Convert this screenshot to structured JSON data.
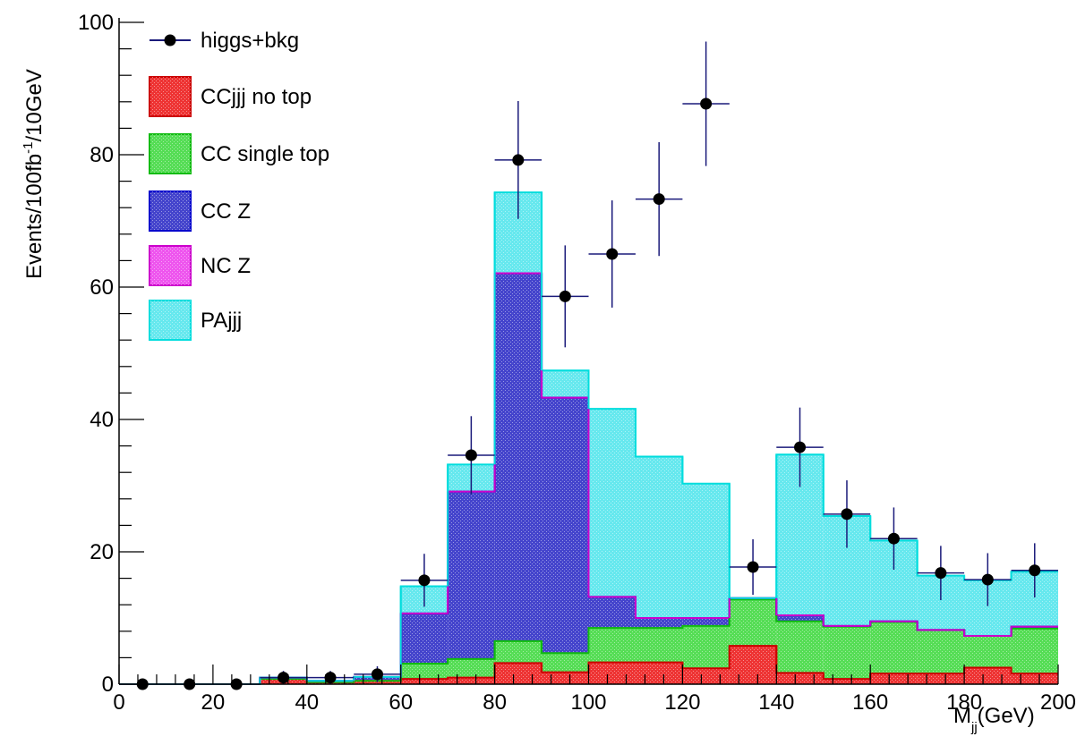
{
  "chart_data": {
    "type": "histogram-stacked",
    "xlabel": "M",
    "xlabel_sub": "jj",
    "xlabel_unit": "(GeV)",
    "ylabel_pre": "Events/100fb",
    "ylabel_sup": "-1",
    "ylabel_post": "/10GeV",
    "xlim": [
      0,
      200
    ],
    "ylim": [
      0,
      100
    ],
    "x_ticks": [
      0,
      20,
      40,
      60,
      80,
      100,
      120,
      140,
      160,
      180,
      200
    ],
    "x_tick_labels": [
      "0",
      "20",
      "40",
      "60",
      "80",
      "100",
      "120",
      "140",
      "160",
      "180",
      "200"
    ],
    "y_ticks": [
      0,
      20,
      40,
      60,
      80,
      100
    ],
    "y_tick_labels": [
      "0",
      "20",
      "40",
      "60",
      "80",
      "100"
    ],
    "bin_edges": [
      0,
      10,
      20,
      30,
      40,
      50,
      60,
      70,
      80,
      90,
      100,
      110,
      120,
      130,
      140,
      150,
      160,
      170,
      180,
      190,
      200
    ],
    "stacked_series": [
      {
        "name": "CCjjj no top",
        "color": "#ee3333",
        "edge": "#cc0000",
        "values": [
          0,
          0,
          0,
          0.8,
          0.3,
          0.5,
          0.8,
          1.0,
          3.2,
          1.8,
          3.3,
          3.3,
          2.4,
          5.8,
          1.7,
          0.8,
          1.6,
          1.6,
          2.5,
          1.6
        ]
      },
      {
        "name": "CC single top",
        "color": "#55dd55",
        "edge": "#11bb11",
        "values": [
          0,
          0,
          0,
          0,
          0,
          0,
          2.3,
          2.8,
          3.3,
          2.9,
          5.2,
          5.2,
          6.4,
          7.0,
          7.8,
          7.9,
          7.8,
          6.6,
          4.8,
          6.8
        ]
      },
      {
        "name": "CC Z",
        "color": "#4444cc",
        "edge": "#0000cc",
        "values": [
          0,
          0,
          0,
          0.2,
          0.2,
          0.6,
          7.6,
          25.3,
          55.6,
          38.6,
          4.7,
          1.5,
          1.2,
          0.2,
          0.9,
          0.1,
          0.1,
          0,
          0,
          0.3
        ]
      },
      {
        "name": "NC Z",
        "color": "#ee55ee",
        "edge": "#cc00cc",
        "values": [
          0,
          0,
          0,
          0,
          0,
          0,
          0,
          0,
          0,
          0,
          0,
          0,
          0,
          0,
          0,
          0,
          0,
          0,
          0,
          0
        ]
      },
      {
        "name": "PAjjj",
        "color": "#66e8ee",
        "edge": "#00dddd",
        "values": [
          0,
          0,
          0,
          0,
          0,
          0,
          4.1,
          4.1,
          12.2,
          4.1,
          28.4,
          24.4,
          20.3,
          0,
          24.3,
          16.6,
          12.2,
          8.2,
          8.4,
          8.3
        ]
      }
    ],
    "data_series": {
      "name": "higgs+bkg",
      "color": "#000000",
      "errcolor": "#1a1a7a",
      "x": [
        5,
        15,
        25,
        35,
        45,
        55,
        65,
        75,
        85,
        95,
        105,
        115,
        125,
        135,
        145,
        155,
        165,
        175,
        185,
        195
      ],
      "y": [
        0,
        0,
        0,
        1.0,
        1.0,
        1.5,
        15.7,
        34.6,
        79.2,
        58.6,
        65.0,
        73.3,
        87.7,
        17.7,
        35.8,
        25.7,
        22.0,
        16.8,
        15.8,
        17.2
      ],
      "err": [
        0,
        0,
        0,
        1.0,
        1.0,
        1.2,
        4.0,
        5.9,
        8.9,
        7.7,
        8.1,
        8.6,
        9.4,
        4.2,
        6.0,
        5.1,
        4.7,
        4.1,
        4.0,
        4.1
      ]
    },
    "legend_order": [
      "higgs+bkg",
      "CCjjj no top",
      "CC single top",
      "CC Z",
      "NC Z",
      "PAjjj"
    ],
    "legend_position": "top-left",
    "grid": false
  }
}
